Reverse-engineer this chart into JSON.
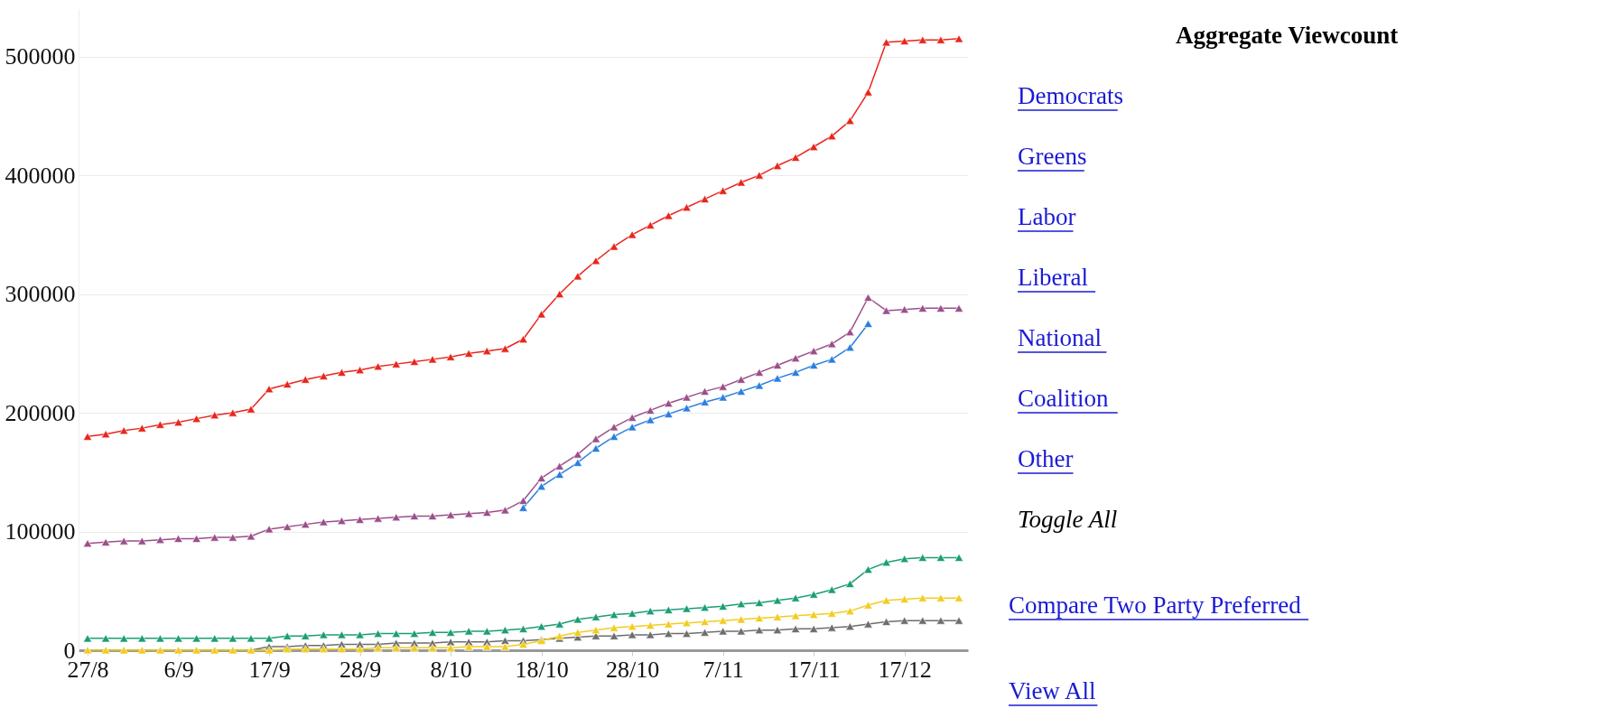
{
  "chart_data": {
    "type": "line",
    "marker": "triangle",
    "grid": "y",
    "categories": [
      "27/8",
      null,
      null,
      null,
      null,
      "6/9",
      null,
      null,
      null,
      null,
      "17/9",
      null,
      null,
      null,
      null,
      "28/9",
      null,
      null,
      null,
      null,
      "8/10",
      null,
      null,
      null,
      null,
      "18/10",
      null,
      null,
      null,
      null,
      "28/10",
      null,
      null,
      null,
      null,
      "7/11",
      null,
      null,
      null,
      null,
      "17/11",
      null,
      null,
      null,
      null,
      "17/12",
      null,
      null,
      null
    ],
    "ylim": [
      0,
      540000
    ],
    "yticks": [
      0,
      100000,
      200000,
      300000,
      400000,
      500000
    ],
    "annotations": [
      "Aggregate Viewcount",
      "Democrats",
      "Greens",
      "Labor",
      "Liberal",
      "National",
      "Coalition",
      "Other",
      "Toggle All",
      "Compare Two Party Preferred",
      "View All"
    ],
    "series": [
      {
        "color": "#6e6e6e",
        "values": [
          0,
          0,
          0,
          0,
          0,
          0,
          0,
          0,
          0,
          0,
          3000,
          3000,
          4000,
          4000,
          5000,
          5000,
          5000,
          6000,
          6000,
          6000,
          7000,
          7000,
          7000,
          8000,
          8000,
          9000,
          10000,
          11000,
          12000,
          12000,
          13000,
          13000,
          14000,
          14000,
          15000,
          16000,
          16000,
          17000,
          17000,
          18000,
          18000,
          19000,
          20000,
          22000,
          24000,
          25000,
          25000,
          25000,
          25000
        ]
      },
      {
        "color": "#f2cc1f",
        "values": [
          0,
          0,
          0,
          0,
          0,
          0,
          0,
          0,
          0,
          0,
          0,
          1000,
          1000,
          1000,
          1000,
          1000,
          2000,
          2000,
          2000,
          2000,
          2000,
          3000,
          3000,
          3000,
          5000,
          8000,
          12000,
          15000,
          17000,
          19000,
          20000,
          21000,
          22000,
          23000,
          24000,
          25000,
          26000,
          27000,
          28000,
          29000,
          30000,
          31000,
          33000,
          38000,
          42000,
          43000,
          44000,
          44000,
          44000
        ]
      },
      {
        "color": "#1a9e77",
        "values": [
          10000,
          10000,
          10000,
          10000,
          10000,
          10000,
          10000,
          10000,
          10000,
          10000,
          10000,
          12000,
          12000,
          13000,
          13000,
          13000,
          14000,
          14000,
          14000,
          15000,
          15000,
          16000,
          16000,
          17000,
          18000,
          20000,
          22000,
          26000,
          28000,
          30000,
          31000,
          33000,
          34000,
          35000,
          36000,
          37000,
          39000,
          40000,
          42000,
          44000,
          47000,
          51000,
          56000,
          68000,
          74000,
          77000,
          78000,
          78000,
          78000
        ]
      },
      {
        "color": "#2a7fe0",
        "values": [
          null,
          null,
          null,
          null,
          null,
          null,
          null,
          null,
          null,
          null,
          null,
          null,
          null,
          null,
          null,
          null,
          null,
          null,
          null,
          null,
          null,
          null,
          null,
          null,
          120000,
          138000,
          148000,
          158000,
          170000,
          180000,
          188000,
          194000,
          199000,
          204000,
          209000,
          213000,
          218000,
          223000,
          229000,
          234000,
          240000,
          245000,
          255000,
          275000,
          null,
          null,
          null,
          null,
          null
        ]
      },
      {
        "color": "#9b4f8a",
        "values": [
          90000,
          91000,
          92000,
          92000,
          93000,
          94000,
          94000,
          95000,
          95000,
          96000,
          102000,
          104000,
          106000,
          108000,
          109000,
          110000,
          111000,
          112000,
          113000,
          113000,
          114000,
          115000,
          116000,
          118000,
          126000,
          145000,
          155000,
          165000,
          178000,
          188000,
          196000,
          202000,
          208000,
          213000,
          218000,
          222000,
          228000,
          234000,
          240000,
          246000,
          252000,
          258000,
          268000,
          297000,
          286000,
          287000,
          288000,
          288000,
          288000
        ]
      },
      {
        "color": "#e8261c",
        "values": [
          180000,
          182000,
          185000,
          187000,
          190000,
          192000,
          195000,
          198000,
          200000,
          203000,
          220000,
          224000,
          228000,
          231000,
          234000,
          236000,
          239000,
          241000,
          243000,
          245000,
          247000,
          250000,
          252000,
          254000,
          262000,
          283000,
          300000,
          315000,
          328000,
          340000,
          350000,
          358000,
          366000,
          373000,
          380000,
          387000,
          394000,
          400000,
          408000,
          415000,
          424000,
          433000,
          446000,
          470000,
          512000,
          513000,
          514000,
          514000,
          515000
        ]
      }
    ]
  }
}
